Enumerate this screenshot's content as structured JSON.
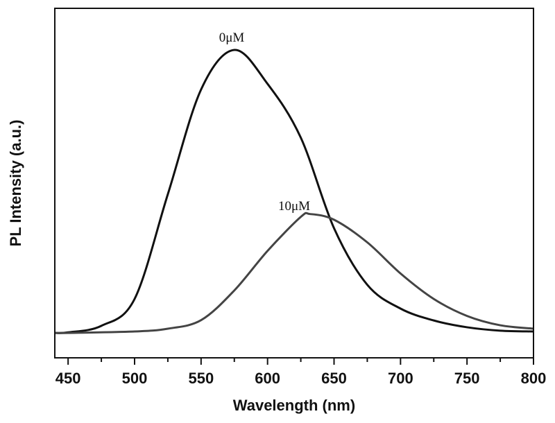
{
  "chart_data": {
    "type": "line",
    "title": "",
    "xlabel": "Wavelength (nm)",
    "ylabel": "PL Intensity (a.u.)",
    "xlim": [
      440,
      800
    ],
    "ylim": [
      -0.088,
      1.147
    ],
    "xticks": [
      450,
      500,
      550,
      600,
      650,
      700,
      750,
      800
    ],
    "xtick_labels": [
      "450",
      "500",
      "550",
      "600",
      "650",
      "700",
      "750",
      "800"
    ],
    "yticks_shown": false,
    "grid": false,
    "legend": "none",
    "series": [
      {
        "name": "0μM",
        "color": "#111111",
        "x": [
          440,
          450,
          475,
          500,
          525,
          550,
          575,
          600,
          625,
          650,
          675,
          700,
          725,
          750,
          775,
          800
        ],
        "y": [
          0,
          0.002,
          0.025,
          0.12,
          0.49,
          0.86,
          1.0,
          0.88,
          0.69,
          0.37,
          0.17,
          0.086,
          0.044,
          0.02,
          0.008,
          0.005
        ]
      },
      {
        "name": "10μM",
        "color": "#444444",
        "x": [
          440,
          450,
          500,
          525,
          550,
          575,
          600,
          625,
          632,
          650,
          675,
          700,
          725,
          750,
          775,
          800
        ],
        "y": [
          0,
          0,
          0.005,
          0.015,
          0.045,
          0.15,
          0.29,
          0.41,
          0.42,
          0.4,
          0.32,
          0.21,
          0.12,
          0.06,
          0.027,
          0.015
        ]
      }
    ],
    "annotations": [
      {
        "text": "0μM",
        "x": 575,
        "y": 1.05
      },
      {
        "text": "10μM",
        "x": 620,
        "y": 0.45
      }
    ]
  }
}
